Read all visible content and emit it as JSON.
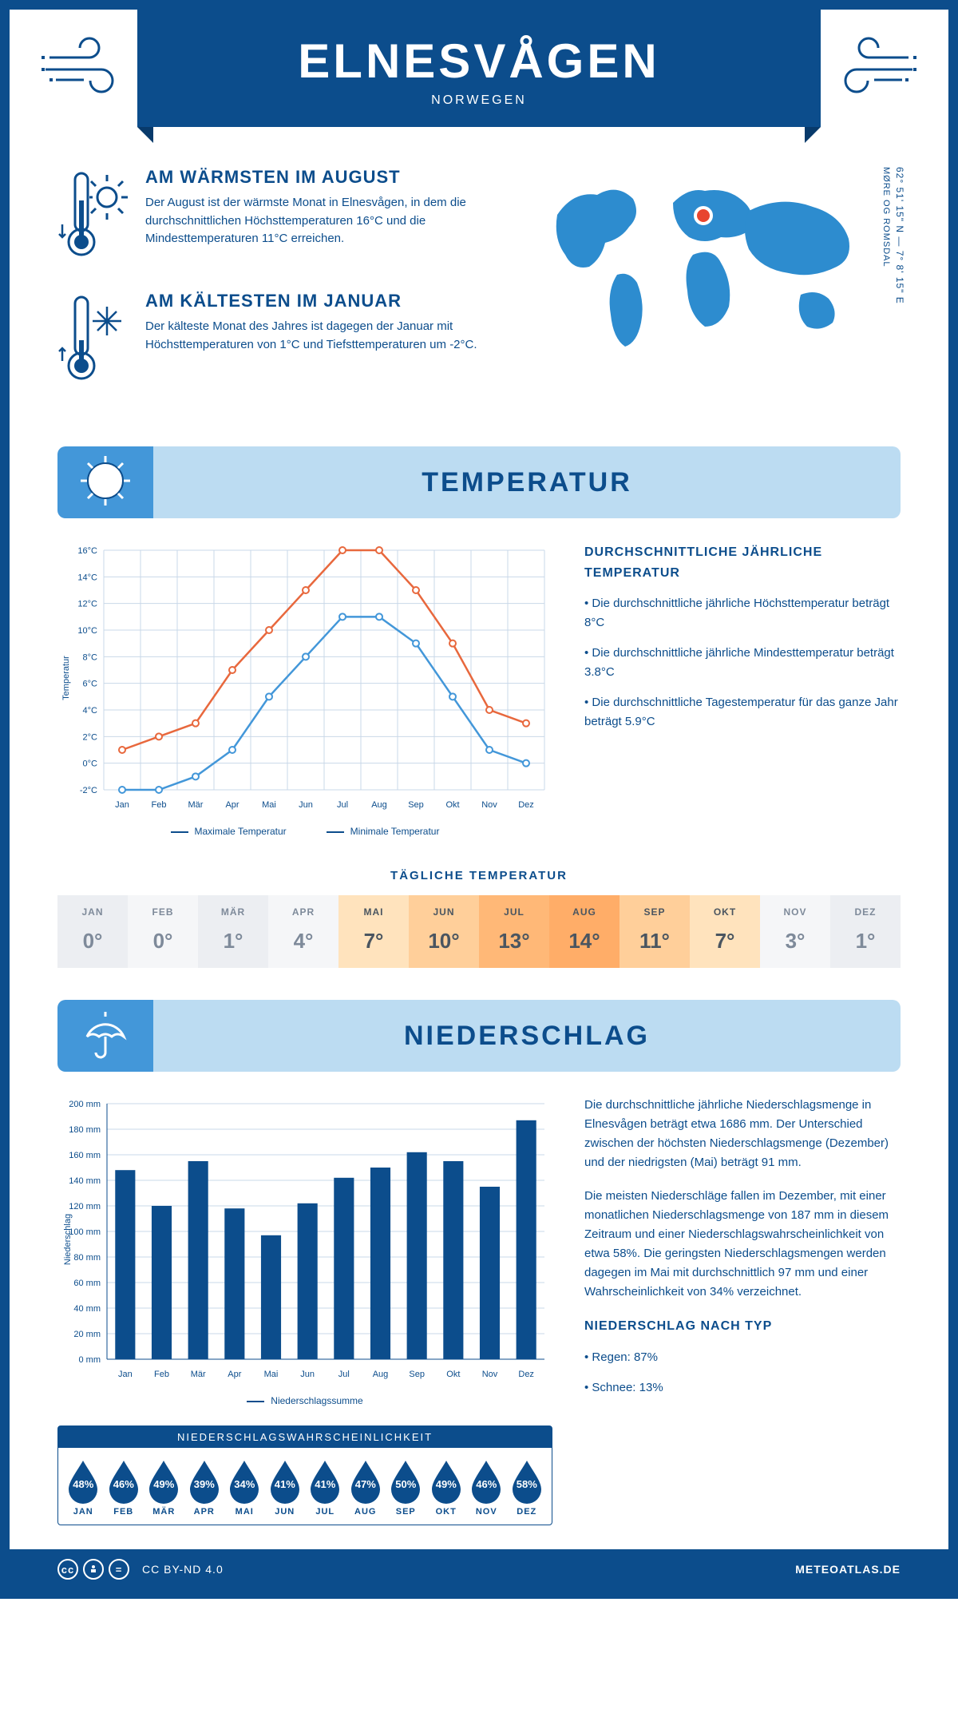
{
  "colors": {
    "primary": "#0c4d8c",
    "light": "#bcdcf2",
    "mid": "#4397d9",
    "max_line": "#e8683d",
    "min_line": "#4397d9",
    "grid": "#c9d8e8"
  },
  "header": {
    "title": "ELNESVÅGEN",
    "subtitle": "NORWEGEN"
  },
  "coords": "62° 51' 15\" N — 7° 8' 15\" E",
  "region": "MØRE OG ROMSDAL",
  "warm": {
    "title": "AM WÄRMSTEN IM AUGUST",
    "text": "Der August ist der wärmste Monat in Elnesvågen, in dem die durchschnittlichen Höchsttemperaturen 16°C und die Mindesttemperaturen 11°C erreichen."
  },
  "cold": {
    "title": "AM KÄLTESTEN IM JANUAR",
    "text": "Der kälteste Monat des Jahres ist dagegen der Januar mit Höchsttemperaturen von 1°C und Tiefsttemperaturen um -2°C."
  },
  "temp_section": {
    "title": "TEMPERATUR"
  },
  "months": [
    "Jan",
    "Feb",
    "Mär",
    "Apr",
    "Mai",
    "Jun",
    "Jul",
    "Aug",
    "Sep",
    "Okt",
    "Nov",
    "Dez"
  ],
  "temp_chart": {
    "ylabel": "Temperatur",
    "ymin": -2,
    "ymax": 16,
    "ystep": 2,
    "ytick_labels": [
      "-2°C",
      "0°C",
      "2°C",
      "4°C",
      "6°C",
      "8°C",
      "10°C",
      "12°C",
      "14°C",
      "16°C"
    ],
    "max_series": [
      1,
      2,
      3,
      7,
      10,
      13,
      16,
      16,
      13,
      9,
      4,
      3
    ],
    "min_series": [
      -2,
      -2,
      -1,
      1,
      5,
      8,
      11,
      11,
      9,
      5,
      1,
      0
    ],
    "legend_max": "Maximale Temperatur",
    "legend_min": "Minimale Temperatur"
  },
  "temp_side": {
    "title": "DURCHSCHNITTLICHE JÄHRLICHE TEMPERATUR",
    "b1": "Die durchschnittliche jährliche Höchsttemperatur beträgt 8°C",
    "b2": "Die durchschnittliche jährliche Mindesttemperatur beträgt 3.8°C",
    "b3": "Die durchschnittliche Tagestemperatur für das ganze Jahr beträgt 5.9°C"
  },
  "daily_temp": {
    "title": "TÄGLICHE TEMPERATUR",
    "months": [
      "JAN",
      "FEB",
      "MÄR",
      "APR",
      "MAI",
      "JUN",
      "JUL",
      "AUG",
      "SEP",
      "OKT",
      "NOV",
      "DEZ"
    ],
    "values": [
      "0°",
      "0°",
      "1°",
      "4°",
      "7°",
      "10°",
      "13°",
      "14°",
      "11°",
      "7°",
      "3°",
      "1°"
    ],
    "bg": [
      "#eceef2",
      "#f5f6f8",
      "#eceef2",
      "#f5f6f8",
      "#ffe3bd",
      "#ffcf9a",
      "#ffb877",
      "#ffad68",
      "#ffcf9a",
      "#ffe3bd",
      "#f5f6f8",
      "#eceef2"
    ],
    "fg": [
      "#7e8a9a",
      "#7e8a9a",
      "#7e8a9a",
      "#7e8a9a",
      "#4a5560",
      "#4a5560",
      "#4a5560",
      "#4a5560",
      "#4a5560",
      "#4a5560",
      "#7e8a9a",
      "#7e8a9a"
    ]
  },
  "precip_section": {
    "title": "NIEDERSCHLAG"
  },
  "precip_chart": {
    "ylabel": "Niederschlag",
    "ymin": 0,
    "ymax": 200,
    "ystep": 20,
    "values": [
      148,
      120,
      155,
      118,
      97,
      122,
      142,
      150,
      162,
      155,
      135,
      187
    ],
    "legend": "Niederschlagssumme"
  },
  "precip_text": {
    "p1": "Die durchschnittliche jährliche Niederschlagsmenge in Elnesvågen beträgt etwa 1686 mm. Der Unterschied zwischen der höchsten Niederschlagsmenge (Dezember) und der niedrigsten (Mai) beträgt 91 mm.",
    "p2": "Die meisten Niederschläge fallen im Dezember, mit einer monatlichen Niederschlagsmenge von 187 mm in diesem Zeitraum und einer Niederschlagswahrscheinlichkeit von etwa 58%. Die geringsten Niederschlagsmengen werden dagegen im Mai mit durchschnittlich 97 mm und einer Wahrscheinlichkeit von 34% verzeichnet.",
    "type_title": "NIEDERSCHLAG NACH TYP",
    "type1": "Regen: 87%",
    "type2": "Schnee: 13%"
  },
  "prob": {
    "title": "NIEDERSCHLAGSWAHRSCHEINLICHKEIT",
    "months": [
      "JAN",
      "FEB",
      "MÄR",
      "APR",
      "MAI",
      "JUN",
      "JUL",
      "AUG",
      "SEP",
      "OKT",
      "NOV",
      "DEZ"
    ],
    "values": [
      "48%",
      "46%",
      "49%",
      "39%",
      "34%",
      "41%",
      "41%",
      "47%",
      "50%",
      "49%",
      "46%",
      "58%"
    ]
  },
  "footer": {
    "license": "CC BY-ND 4.0",
    "site": "METEOATLAS.DE"
  }
}
